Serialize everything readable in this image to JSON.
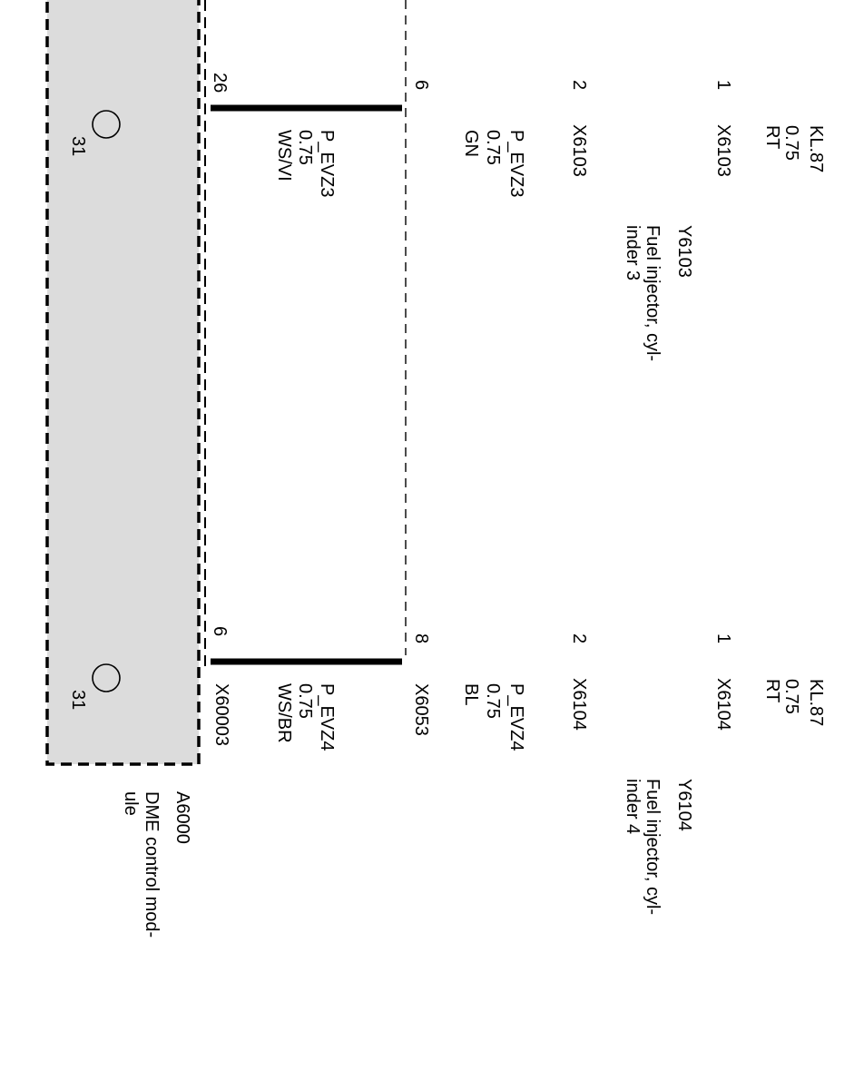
{
  "module": {
    "id": "A6000",
    "name_line1": "DME control mod-",
    "name_line2": "ule",
    "ground_label": "31",
    "fill_color": "#dcdcdc"
  },
  "circuits": [
    {
      "module_pin": "26",
      "module_connector": "",
      "wire1": {
        "signal": "P_EVZ3",
        "size": "0.75",
        "color": "WS/VI"
      },
      "inline_pin": "6",
      "inline_connector": "",
      "wire2": {
        "signal": "P_EVZ3",
        "size": "0.75",
        "color": "GN"
      },
      "injector": {
        "id": "Y6103",
        "name_line1": "Fuel injector, cyl-",
        "name_line2": "inder 3",
        "pin_in": "2",
        "connector_in": "X6103",
        "pin_out": "1",
        "connector_out": "X6103"
      },
      "wire3": {
        "signal": "KL.87",
        "size": "0.75",
        "color": "RT"
      }
    },
    {
      "module_pin": "6",
      "module_connector": "X60003",
      "wire1": {
        "signal": "P_EVZ4",
        "size": "0.75",
        "color": "WS/BR"
      },
      "inline_pin": "8",
      "inline_connector": "X6053",
      "wire2": {
        "signal": "P_EVZ4",
        "size": "0.75",
        "color": "BL"
      },
      "injector": {
        "id": "Y6104",
        "name_line1": "Fuel injector, cyl-",
        "name_line2": "inder 4",
        "pin_in": "2",
        "connector_in": "X6104",
        "pin_out": "1",
        "connector_out": "X6104"
      },
      "wire3": {
        "signal": "KL.87",
        "size": "0.75",
        "color": "RT"
      }
    }
  ]
}
